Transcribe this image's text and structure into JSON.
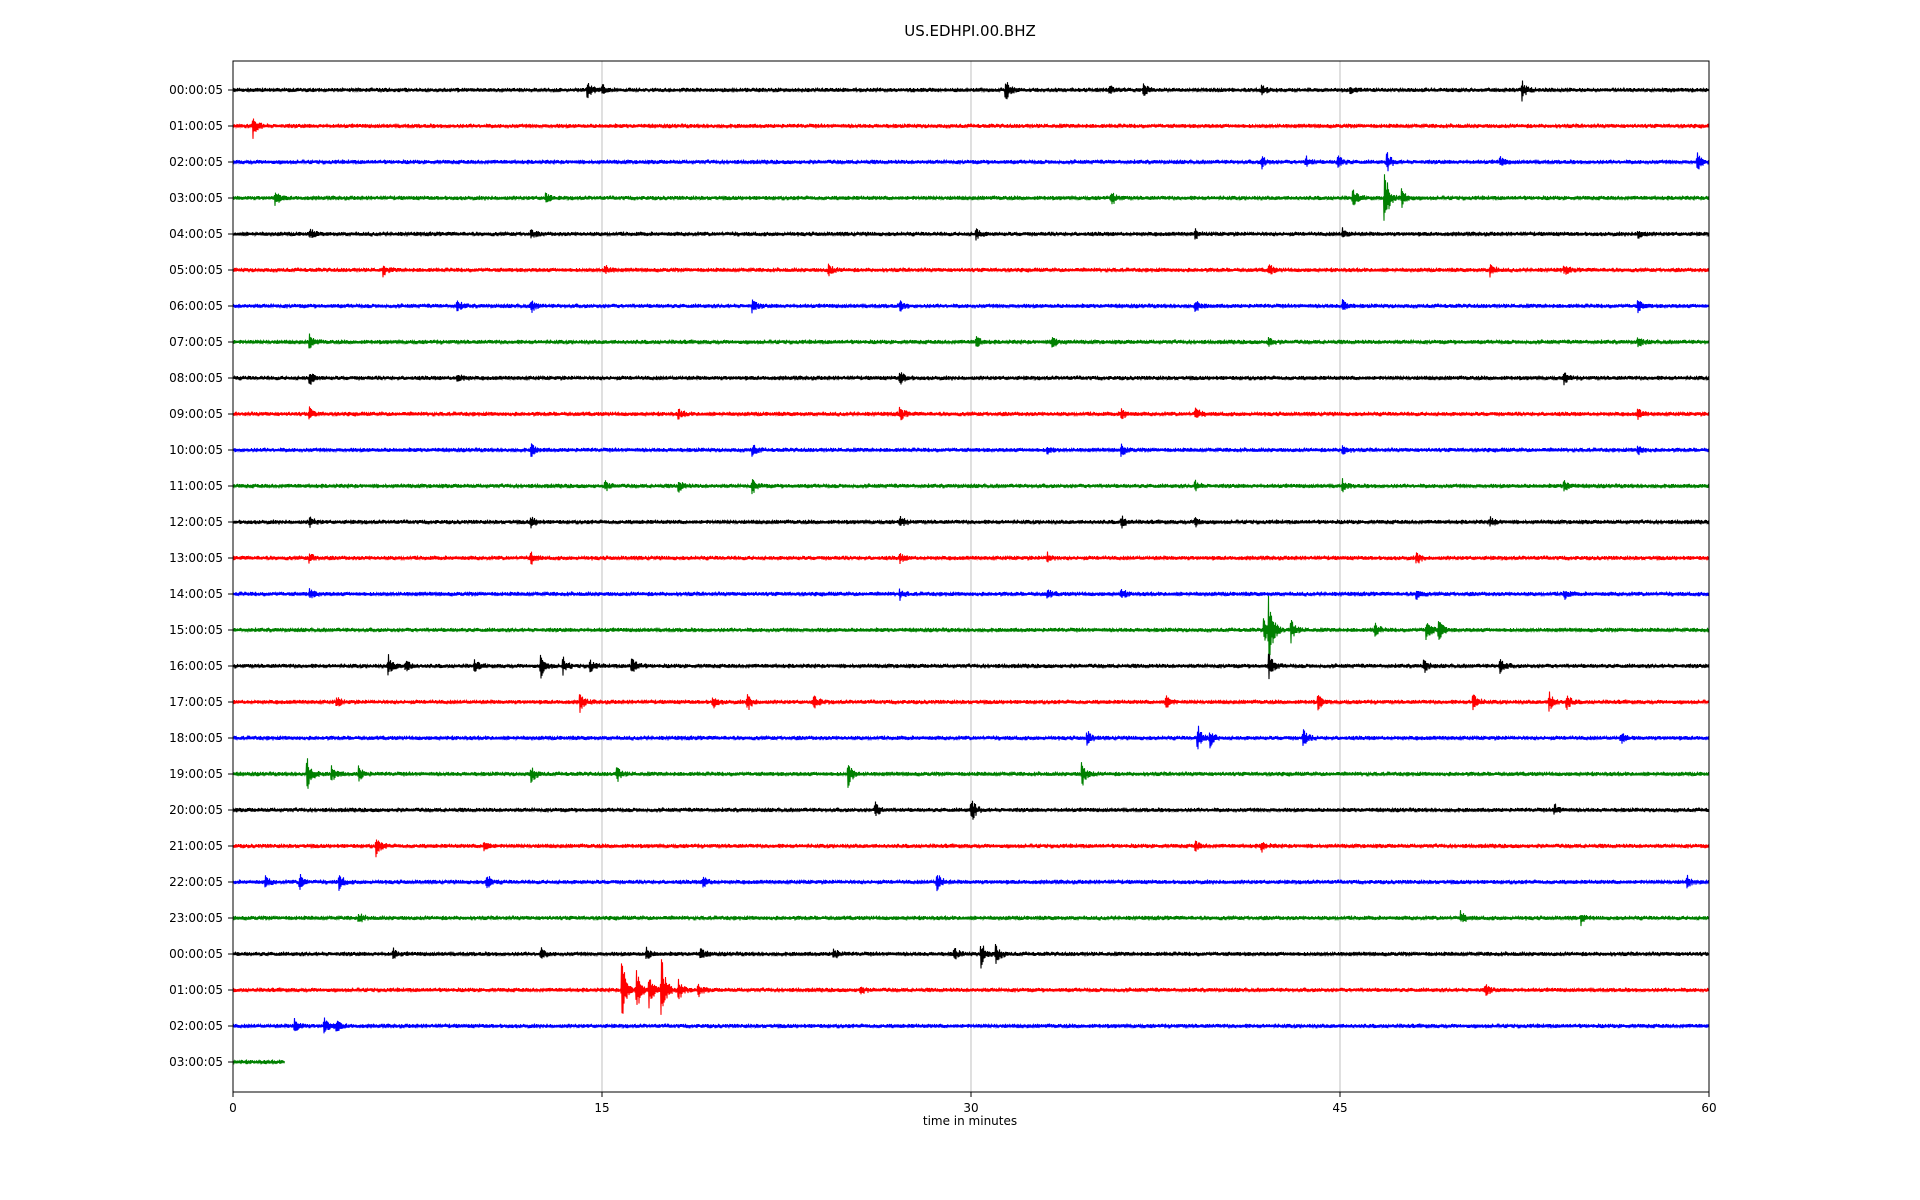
{
  "chart_data": {
    "type": "line",
    "title": "US.EDHPI.00.BHZ",
    "xlabel": "time in minutes",
    "ylabel": "",
    "xlim": [
      0,
      60
    ],
    "x_ticks": [
      "0",
      "15",
      "30",
      "45",
      "60"
    ],
    "x_tick_values": [
      0,
      15,
      30,
      45,
      60
    ],
    "grid": "vertical",
    "row_color_cycle": [
      "#000000",
      "#ff0000",
      "#0000ff",
      "#008000"
    ],
    "rows": [
      {
        "label": "00:00:05",
        "end_minute": 60,
        "noise": 2.5,
        "events": [
          {
            "t": 14.4,
            "amp": 9
          },
          {
            "t": 15,
            "amp": 6
          },
          {
            "t": 31.4,
            "amp": 12
          },
          {
            "t": 35.6,
            "amp": 5
          },
          {
            "t": 37,
            "amp": 6
          },
          {
            "t": 41.8,
            "amp": 6
          },
          {
            "t": 45.4,
            "amp": 4
          },
          {
            "t": 52.4,
            "amp": 10
          }
        ]
      },
      {
        "label": "01:00:05",
        "end_minute": 60,
        "noise": 2.5,
        "events": [
          {
            "t": 0.8,
            "amp": 12
          }
        ]
      },
      {
        "label": "02:00:05",
        "end_minute": 60,
        "noise": 2.5,
        "events": [
          {
            "t": 41.8,
            "amp": 7
          },
          {
            "t": 43.6,
            "amp": 6
          },
          {
            "t": 44.9,
            "amp": 8
          },
          {
            "t": 46.9,
            "amp": 10
          },
          {
            "t": 51.5,
            "amp": 5
          },
          {
            "t": 59.5,
            "amp": 10
          }
        ]
      },
      {
        "label": "03:00:05",
        "end_minute": 60,
        "noise": 2.5,
        "events": [
          {
            "t": 1.7,
            "amp": 7
          },
          {
            "t": 12.7,
            "amp": 6
          },
          {
            "t": 35.7,
            "amp": 7
          },
          {
            "t": 45.5,
            "amp": 10
          },
          {
            "t": 46.8,
            "amp": 34
          },
          {
            "t": 47.5,
            "amp": 10
          }
        ]
      },
      {
        "label": "04:00:05",
        "end_minute": 60,
        "noise": 2.5,
        "events": [
          {
            "t": 3.1,
            "amp": 6
          },
          {
            "t": 12.1,
            "amp": 5
          },
          {
            "t": 30.2,
            "amp": 5
          },
          {
            "t": 39.1,
            "amp": 6
          },
          {
            "t": 45.1,
            "amp": 6
          },
          {
            "t": 57.1,
            "amp": 5
          }
        ]
      },
      {
        "label": "05:00:05",
        "end_minute": 60,
        "noise": 2.5,
        "events": [
          {
            "t": 6.1,
            "amp": 6
          },
          {
            "t": 15.1,
            "amp": 5
          },
          {
            "t": 24.2,
            "amp": 6
          },
          {
            "t": 42.1,
            "amp": 6
          },
          {
            "t": 51.1,
            "amp": 6
          },
          {
            "t": 54.1,
            "amp": 5
          }
        ]
      },
      {
        "label": "06:00:05",
        "end_minute": 60,
        "noise": 2.5,
        "events": [
          {
            "t": 9.1,
            "amp": 6
          },
          {
            "t": 12.1,
            "amp": 7
          },
          {
            "t": 21.1,
            "amp": 6
          },
          {
            "t": 27.1,
            "amp": 5
          },
          {
            "t": 39.1,
            "amp": 6
          },
          {
            "t": 45.1,
            "amp": 6
          },
          {
            "t": 57.1,
            "amp": 6
          }
        ]
      },
      {
        "label": "07:00:05",
        "end_minute": 60,
        "noise": 2.5,
        "events": [
          {
            "t": 3.1,
            "amp": 7
          },
          {
            "t": 30.2,
            "amp": 7
          },
          {
            "t": 33.3,
            "amp": 8
          },
          {
            "t": 42.1,
            "amp": 5
          },
          {
            "t": 57.1,
            "amp": 6
          }
        ]
      },
      {
        "label": "08:00:05",
        "end_minute": 60,
        "noise": 2.5,
        "events": [
          {
            "t": 3.1,
            "amp": 7
          },
          {
            "t": 9.1,
            "amp": 6
          },
          {
            "t": 27.1,
            "amp": 7
          },
          {
            "t": 54.1,
            "amp": 6
          }
        ]
      },
      {
        "label": "09:00:05",
        "end_minute": 60,
        "noise": 2.5,
        "events": [
          {
            "t": 3.1,
            "amp": 6
          },
          {
            "t": 18.1,
            "amp": 5
          },
          {
            "t": 27.1,
            "amp": 7
          },
          {
            "t": 36.1,
            "amp": 6
          },
          {
            "t": 39.1,
            "amp": 7
          },
          {
            "t": 57.1,
            "amp": 6
          }
        ]
      },
      {
        "label": "10:00:05",
        "end_minute": 60,
        "noise": 2.5,
        "events": [
          {
            "t": 12.1,
            "amp": 7
          },
          {
            "t": 21.1,
            "amp": 6
          },
          {
            "t": 33.1,
            "amp": 5
          },
          {
            "t": 36.1,
            "amp": 6
          },
          {
            "t": 45.1,
            "amp": 5
          },
          {
            "t": 57.1,
            "amp": 5
          }
        ]
      },
      {
        "label": "11:00:05",
        "end_minute": 60,
        "noise": 2.5,
        "events": [
          {
            "t": 15.1,
            "amp": 6
          },
          {
            "t": 18.1,
            "amp": 6
          },
          {
            "t": 21.1,
            "amp": 8
          },
          {
            "t": 39.1,
            "amp": 5
          },
          {
            "t": 45.1,
            "amp": 7
          },
          {
            "t": 54.1,
            "amp": 6
          }
        ]
      },
      {
        "label": "12:00:05",
        "end_minute": 60,
        "noise": 2.5,
        "events": [
          {
            "t": 3.1,
            "amp": 6
          },
          {
            "t": 12.1,
            "amp": 6
          },
          {
            "t": 27.1,
            "amp": 6
          },
          {
            "t": 36.1,
            "amp": 7
          },
          {
            "t": 39.1,
            "amp": 5
          },
          {
            "t": 51.1,
            "amp": 5
          }
        ]
      },
      {
        "label": "13:00:05",
        "end_minute": 60,
        "noise": 2.5,
        "events": [
          {
            "t": 3.1,
            "amp": 6
          },
          {
            "t": 12.1,
            "amp": 6
          },
          {
            "t": 27.1,
            "amp": 5
          },
          {
            "t": 33.1,
            "amp": 5
          },
          {
            "t": 48.1,
            "amp": 6
          }
        ]
      },
      {
        "label": "14:00:05",
        "end_minute": 60,
        "noise": 2.5,
        "events": [
          {
            "t": 3.1,
            "amp": 6
          },
          {
            "t": 27.1,
            "amp": 5
          },
          {
            "t": 33.1,
            "amp": 5
          },
          {
            "t": 36.1,
            "amp": 5
          },
          {
            "t": 48.1,
            "amp": 5
          },
          {
            "t": 54.1,
            "amp": 5
          }
        ]
      },
      {
        "label": "15:00:05",
        "end_minute": 60,
        "noise": 2.5,
        "events": [
          {
            "t": 41.9,
            "amp": 14
          },
          {
            "t": 42.1,
            "amp": 40
          },
          {
            "t": 43,
            "amp": 12
          },
          {
            "t": 46.4,
            "amp": 8
          },
          {
            "t": 48.5,
            "amp": 12
          },
          {
            "t": 49,
            "amp": 12
          }
        ]
      },
      {
        "label": "16:00:05",
        "end_minute": 60,
        "noise": 2.5,
        "events": [
          {
            "t": 6.3,
            "amp": 12
          },
          {
            "t": 7,
            "amp": 7
          },
          {
            "t": 9.8,
            "amp": 6
          },
          {
            "t": 12.5,
            "amp": 12
          },
          {
            "t": 13.4,
            "amp": 9
          },
          {
            "t": 14.5,
            "amp": 6
          },
          {
            "t": 16.2,
            "amp": 10
          },
          {
            "t": 42.1,
            "amp": 14
          },
          {
            "t": 48.4,
            "amp": 7
          },
          {
            "t": 51.5,
            "amp": 9
          }
        ]
      },
      {
        "label": "17:00:05",
        "end_minute": 60,
        "noise": 2.5,
        "events": [
          {
            "t": 4.2,
            "amp": 7
          },
          {
            "t": 14.1,
            "amp": 10
          },
          {
            "t": 19.5,
            "amp": 6
          },
          {
            "t": 20.9,
            "amp": 10
          },
          {
            "t": 23.6,
            "amp": 9
          },
          {
            "t": 37.9,
            "amp": 8
          },
          {
            "t": 44.1,
            "amp": 8
          },
          {
            "t": 50.4,
            "amp": 10
          },
          {
            "t": 53.5,
            "amp": 10
          },
          {
            "t": 54.2,
            "amp": 8
          }
        ]
      },
      {
        "label": "18:00:05",
        "end_minute": 60,
        "noise": 2.5,
        "events": [
          {
            "t": 34.7,
            "amp": 8
          },
          {
            "t": 39.2,
            "amp": 15
          },
          {
            "t": 39.7,
            "amp": 9
          },
          {
            "t": 43.5,
            "amp": 9
          },
          {
            "t": 56.4,
            "amp": 6
          }
        ]
      },
      {
        "label": "19:00:05",
        "end_minute": 60,
        "noise": 2.5,
        "events": [
          {
            "t": 3,
            "amp": 18
          },
          {
            "t": 4,
            "amp": 8
          },
          {
            "t": 5.1,
            "amp": 7
          },
          {
            "t": 12.1,
            "amp": 9
          },
          {
            "t": 15.6,
            "amp": 8
          },
          {
            "t": 25,
            "amp": 14
          },
          {
            "t": 34.5,
            "amp": 14
          }
        ]
      },
      {
        "label": "20:00:05",
        "end_minute": 60,
        "noise": 2.5,
        "events": [
          {
            "t": 26.1,
            "amp": 8
          },
          {
            "t": 30,
            "amp": 14
          },
          {
            "t": 53.7,
            "amp": 7
          }
        ]
      },
      {
        "label": "21:00:05",
        "end_minute": 60,
        "noise": 2.5,
        "events": [
          {
            "t": 5.8,
            "amp": 11
          },
          {
            "t": 10.2,
            "amp": 5
          },
          {
            "t": 39.1,
            "amp": 5
          },
          {
            "t": 41.8,
            "amp": 6
          }
        ]
      },
      {
        "label": "22:00:05",
        "end_minute": 60,
        "noise": 2.5,
        "events": [
          {
            "t": 1.3,
            "amp": 6
          },
          {
            "t": 2.7,
            "amp": 8
          },
          {
            "t": 4.3,
            "amp": 9
          },
          {
            "t": 10.3,
            "amp": 9
          },
          {
            "t": 19.1,
            "amp": 6
          },
          {
            "t": 28.6,
            "amp": 11
          },
          {
            "t": 59.1,
            "amp": 6
          }
        ]
      },
      {
        "label": "23:00:05",
        "end_minute": 60,
        "noise": 2.5,
        "events": [
          {
            "t": 5.1,
            "amp": 5
          },
          {
            "t": 49.9,
            "amp": 6
          },
          {
            "t": 54.8,
            "amp": 7
          }
        ]
      },
      {
        "label": "00:00:05",
        "end_minute": 60,
        "noise": 2.5,
        "events": [
          {
            "t": 6.5,
            "amp": 5
          },
          {
            "t": 12.5,
            "amp": 6
          },
          {
            "t": 16.8,
            "amp": 6
          },
          {
            "t": 19,
            "amp": 6
          },
          {
            "t": 24.4,
            "amp": 6
          },
          {
            "t": 29.3,
            "amp": 7
          },
          {
            "t": 30.4,
            "amp": 14
          },
          {
            "t": 31,
            "amp": 10
          }
        ]
      },
      {
        "label": "01:00:05",
        "end_minute": 60,
        "noise": 2.5,
        "events": [
          {
            "t": 15.8,
            "amp": 38
          },
          {
            "t": 16.4,
            "amp": 26
          },
          {
            "t": 16.9,
            "amp": 18
          },
          {
            "t": 17.4,
            "amp": 38
          },
          {
            "t": 18.1,
            "amp": 12
          },
          {
            "t": 18.9,
            "amp": 7
          },
          {
            "t": 25.5,
            "amp": 5
          },
          {
            "t": 50.9,
            "amp": 6
          }
        ]
      },
      {
        "label": "02:00:05",
        "end_minute": 60,
        "noise": 2.5,
        "events": [
          {
            "t": 2.5,
            "amp": 7
          },
          {
            "t": 3.7,
            "amp": 9
          },
          {
            "t": 4.2,
            "amp": 6
          }
        ]
      },
      {
        "label": "03:00:05",
        "end_minute": 2.1,
        "noise": 2.5,
        "events": []
      }
    ]
  }
}
